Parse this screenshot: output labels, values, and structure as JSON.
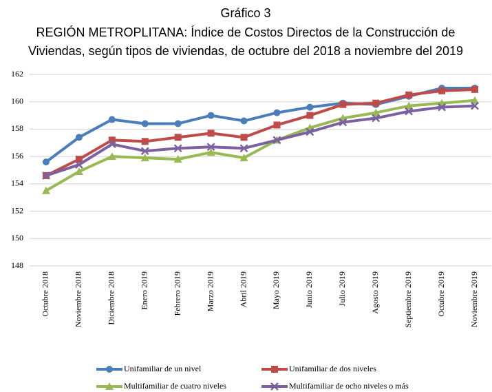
{
  "chart_data": {
    "type": "line",
    "title": "Gráfico 3",
    "subtitle": [
      "REGIÓN METROPLITANA: Índice de Costos Directos de la Construcción de",
      "Viviendas,  según tipos de viviendas, de octubre del 2018 a noviembre del 2019"
    ],
    "categories": [
      "Octubre 2018",
      "Noviembre 2018",
      "Diciembre 2018",
      "Enero 2019",
      "Febrero 2019",
      "Marzo 2019",
      "Abril 2019",
      "Mayo 2019",
      "Junio 2019",
      "Julio 2019",
      "Agosto 2019",
      "Septiembre 2019",
      "Octubre 2019",
      "Noviembre 2019"
    ],
    "series": [
      {
        "name": "Unifamiliar de un nivel",
        "color": "#4a7ebb",
        "marker": "circle",
        "values": [
          155.6,
          157.4,
          158.7,
          158.4,
          158.4,
          159.0,
          158.6,
          159.2,
          159.6,
          159.9,
          159.8,
          160.4,
          161.0,
          161.0
        ]
      },
      {
        "name": "Unifamiliar de dos niveles",
        "color": "#be4b48",
        "marker": "square",
        "values": [
          154.6,
          155.8,
          157.2,
          157.1,
          157.4,
          157.7,
          157.4,
          158.3,
          159.0,
          159.8,
          159.9,
          160.5,
          160.8,
          160.9
        ]
      },
      {
        "name": "Multifamiliar de cuatro niveles",
        "color": "#98b954",
        "marker": "triangle",
        "values": [
          153.5,
          154.9,
          156.0,
          155.9,
          155.8,
          156.3,
          155.9,
          157.2,
          158.1,
          158.8,
          159.2,
          159.7,
          159.9,
          160.1
        ]
      },
      {
        "name": "Multifamiliar de ocho niveles o más",
        "color": "#7d60a0",
        "marker": "x",
        "values": [
          154.6,
          155.4,
          156.9,
          156.4,
          156.6,
          156.7,
          156.6,
          157.2,
          157.8,
          158.5,
          158.8,
          159.3,
          159.6,
          159.7
        ]
      }
    ],
    "ylim": [
      148,
      162
    ],
    "yticks": [
      148,
      150,
      152,
      154,
      156,
      158,
      160,
      162
    ],
    "grid": true
  }
}
